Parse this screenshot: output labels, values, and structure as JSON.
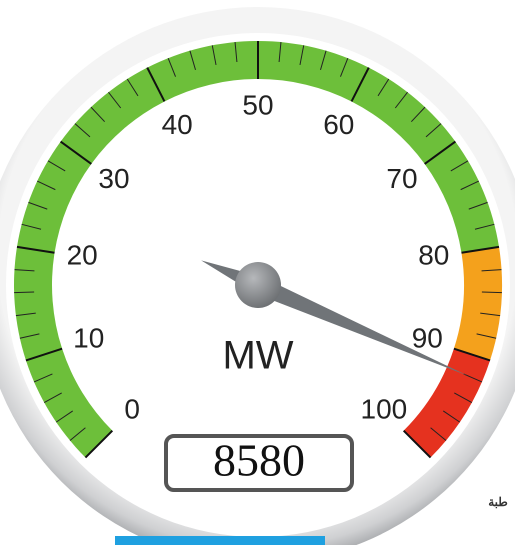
{
  "chart_data": {
    "type": "gauge",
    "value": 92,
    "unit": "MW",
    "readout": "8580",
    "range": [
      0,
      100
    ],
    "ticks": [
      0,
      10,
      20,
      30,
      40,
      50,
      60,
      70,
      80,
      90,
      100
    ],
    "bands": [
      {
        "from": 0,
        "to": 80,
        "color": "#6dbf3a"
      },
      {
        "from": 80,
        "to": 90,
        "color": "#f4a11c"
      },
      {
        "from": 90,
        "to": 100,
        "color": "#e5321f"
      }
    ],
    "needle_color": "#707478"
  },
  "background_text": "طبة"
}
